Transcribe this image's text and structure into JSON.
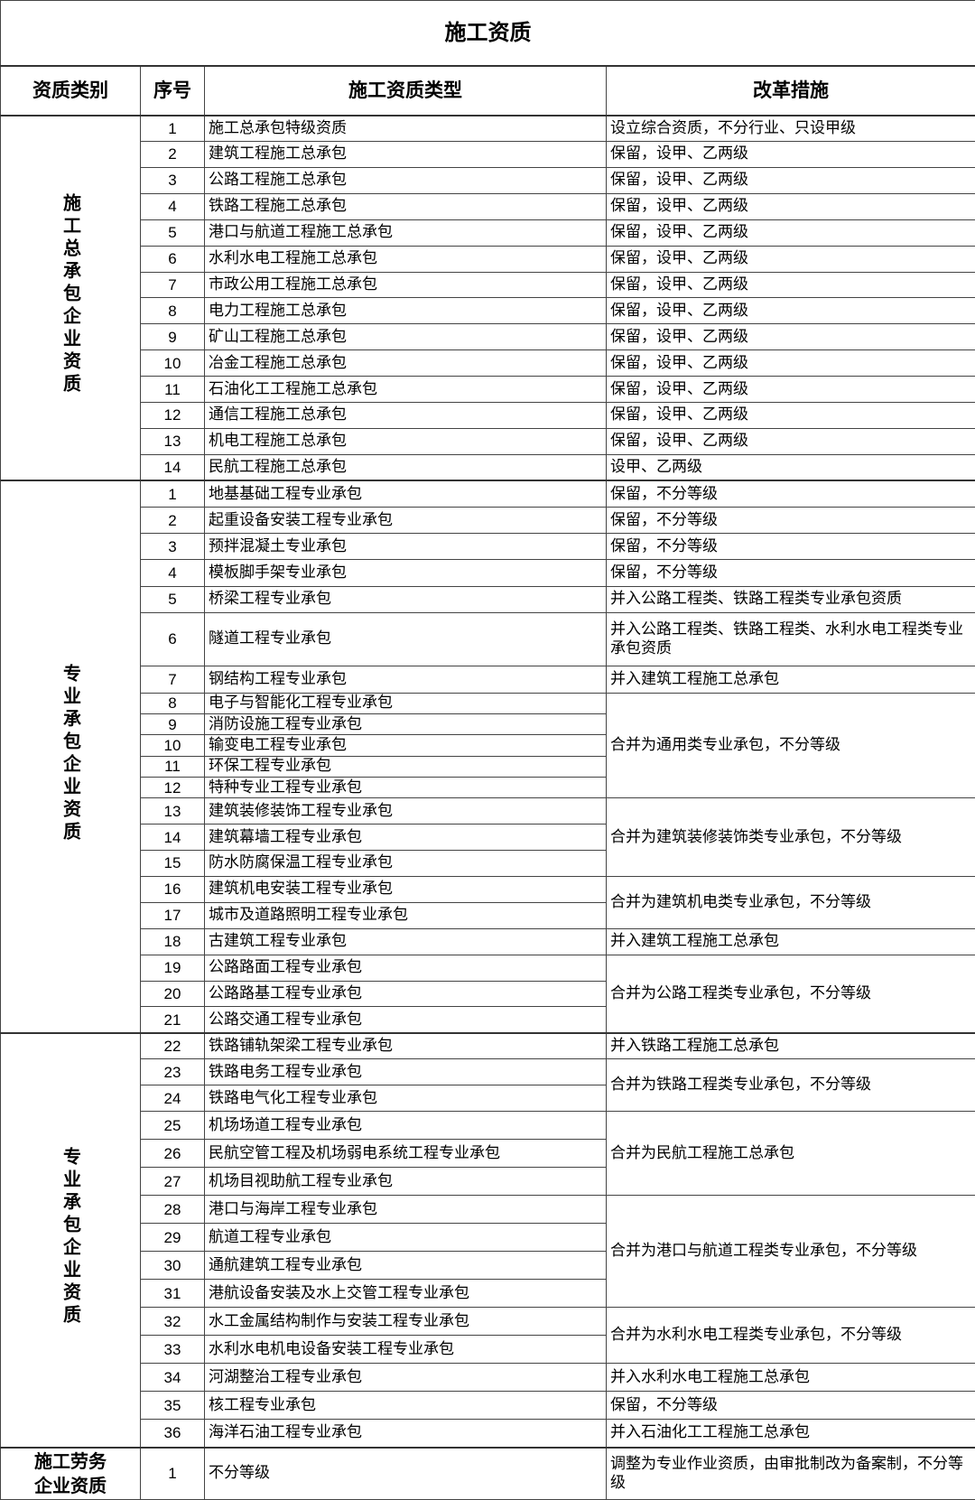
{
  "title": "施工资质",
  "headers": [
    "资质类别",
    "序号",
    "施工资质类型",
    "改革措施"
  ],
  "groups": [
    {
      "category": "施工总承包企业资质",
      "rows": [
        {
          "no": "1",
          "type": "施工总承包特级资质",
          "measure": "设立综合资质，不分行业、只设甲级",
          "span": 1
        },
        {
          "no": "2",
          "type": "建筑工程施工总承包",
          "measure": "保留，设甲、乙两级",
          "span": 1
        },
        {
          "no": "3",
          "type": "公路工程施工总承包",
          "measure": "保留，设甲、乙两级",
          "span": 1
        },
        {
          "no": "4",
          "type": "铁路工程施工总承包",
          "measure": "保留，设甲、乙两级",
          "span": 1
        },
        {
          "no": "5",
          "type": "港口与航道工程施工总承包",
          "measure": "保留，设甲、乙两级",
          "span": 1
        },
        {
          "no": "6",
          "type": "水利水电工程施工总承包",
          "measure": "保留，设甲、乙两级",
          "span": 1
        },
        {
          "no": "7",
          "type": "市政公用工程施工总承包",
          "measure": "保留，设甲、乙两级",
          "span": 1
        },
        {
          "no": "8",
          "type": "电力工程施工总承包",
          "measure": "保留，设甲、乙两级",
          "span": 1
        },
        {
          "no": "9",
          "type": "矿山工程施工总承包",
          "measure": "保留，设甲、乙两级",
          "span": 1
        },
        {
          "no": "10",
          "type": "冶金工程施工总承包",
          "measure": "保留，设甲、乙两级",
          "span": 1
        },
        {
          "no": "11",
          "type": "石油化工工程施工总承包",
          "measure": "保留，设甲、乙两级",
          "span": 1
        },
        {
          "no": "12",
          "type": "通信工程施工总承包",
          "measure": "保留，设甲、乙两级",
          "span": 1
        },
        {
          "no": "13",
          "type": "机电工程施工总承包",
          "measure": "保留，设甲、乙两级",
          "span": 1
        },
        {
          "no": "14",
          "type": "民航工程施工总承包",
          "measure": "设甲、乙两级",
          "span": 1
        }
      ]
    },
    {
      "category": "专业承包企业资质",
      "rows": [
        {
          "no": "1",
          "type": "地基基础工程专业承包",
          "measure": "保留，不分等级",
          "span": 1
        },
        {
          "no": "2",
          "type": "起重设备安装工程专业承包",
          "measure": "保留，不分等级",
          "span": 1
        },
        {
          "no": "3",
          "type": "预拌混凝土专业承包",
          "measure": "保留，不分等级",
          "span": 1
        },
        {
          "no": "4",
          "type": "模板脚手架专业承包",
          "measure": "保留，不分等级",
          "span": 1
        },
        {
          "no": "5",
          "type": "桥梁工程专业承包",
          "measure": "并入公路工程类、铁路工程类专业承包资质",
          "span": 1
        },
        {
          "no": "6",
          "type": "隧道工程专业承包",
          "measure": "并入公路工程类、铁路工程类、水利水电工程类专业承包资质",
          "span": 1
        },
        {
          "no": "7",
          "type": "钢结构工程专业承包",
          "measure": "并入建筑工程施工总承包",
          "span": 1
        },
        {
          "no": "8",
          "type": "电子与智能化工程专业承包",
          "measure": "合并为通用类专业承包，不分等级",
          "span": 5
        },
        {
          "no": "9",
          "type": "消防设施工程专业承包"
        },
        {
          "no": "10",
          "type": "输变电工程专业承包"
        },
        {
          "no": "11",
          "type": "环保工程专业承包"
        },
        {
          "no": "12",
          "type": "特种专业工程专业承包"
        },
        {
          "no": "13",
          "type": "建筑装修装饰工程专业承包",
          "measure": "合并为建筑装修装饰类专业承包，不分等级",
          "span": 3
        },
        {
          "no": "14",
          "type": "建筑幕墙工程专业承包"
        },
        {
          "no": "15",
          "type": "防水防腐保温工程专业承包"
        },
        {
          "no": "16",
          "type": "建筑机电安装工程专业承包",
          "measure": "合并为建筑机电类专业承包，不分等级",
          "span": 2
        },
        {
          "no": "17",
          "type": "城市及道路照明工程专业承包"
        },
        {
          "no": "18",
          "type": "古建筑工程专业承包",
          "measure": "并入建筑工程施工总承包",
          "span": 1
        },
        {
          "no": "19",
          "type": "公路路面工程专业承包",
          "measure": "合并为公路工程类专业承包，不分等级",
          "span": 3
        },
        {
          "no": "20",
          "type": "公路路基工程专业承包"
        },
        {
          "no": "21",
          "type": "公路交通工程专业承包"
        }
      ]
    },
    {
      "category": "专业承包企业资质",
      "rows": [
        {
          "no": "22",
          "type": "铁路铺轨架梁工程专业承包",
          "measure": "并入铁路工程施工总承包",
          "span": 1
        },
        {
          "no": "23",
          "type": "铁路电务工程专业承包",
          "measure": "合并为铁路工程类专业承包，不分等级",
          "span": 2
        },
        {
          "no": "24",
          "type": "铁路电气化工程专业承包"
        },
        {
          "no": "25",
          "type": "机场场道工程专业承包",
          "measure": "合并为民航工程施工总承包",
          "span": 3
        },
        {
          "no": "26",
          "type": "民航空管工程及机场弱电系统工程专业承包"
        },
        {
          "no": "27",
          "type": "机场目视助航工程专业承包"
        },
        {
          "no": "28",
          "type": "港口与海岸工程专业承包",
          "measure": "合并为港口与航道工程类专业承包，不分等级",
          "span": 4
        },
        {
          "no": "29",
          "type": "航道工程专业承包"
        },
        {
          "no": "30",
          "type": "通航建筑工程专业承包"
        },
        {
          "no": "31",
          "type": "港航设备安装及水上交管工程专业承包"
        },
        {
          "no": "32",
          "type": "水工金属结构制作与安装工程专业承包",
          "measure": "合并为水利水电工程类专业承包，不分等级",
          "span": 2
        },
        {
          "no": "33",
          "type": "水利水电机电设备安装工程专业承包"
        },
        {
          "no": "34",
          "type": "河湖整治工程专业承包",
          "measure": "并入水利水电工程施工总承包",
          "span": 1
        },
        {
          "no": "35",
          "type": "核工程专业承包",
          "measure": "保留，不分等级",
          "span": 1
        },
        {
          "no": "36",
          "type": "海洋石油工程专业承包",
          "measure": "并入石油化工工程施工总承包",
          "span": 1
        }
      ]
    },
    {
      "category": "施工劳务企业资质",
      "category_lines": [
        "施工劳务",
        "企业资质"
      ],
      "rows": [
        {
          "no": "1",
          "type": "不分等级",
          "measure": "调整为专业作业资质，由审批制改为备案制，不分等级",
          "span": 1
        }
      ]
    }
  ]
}
